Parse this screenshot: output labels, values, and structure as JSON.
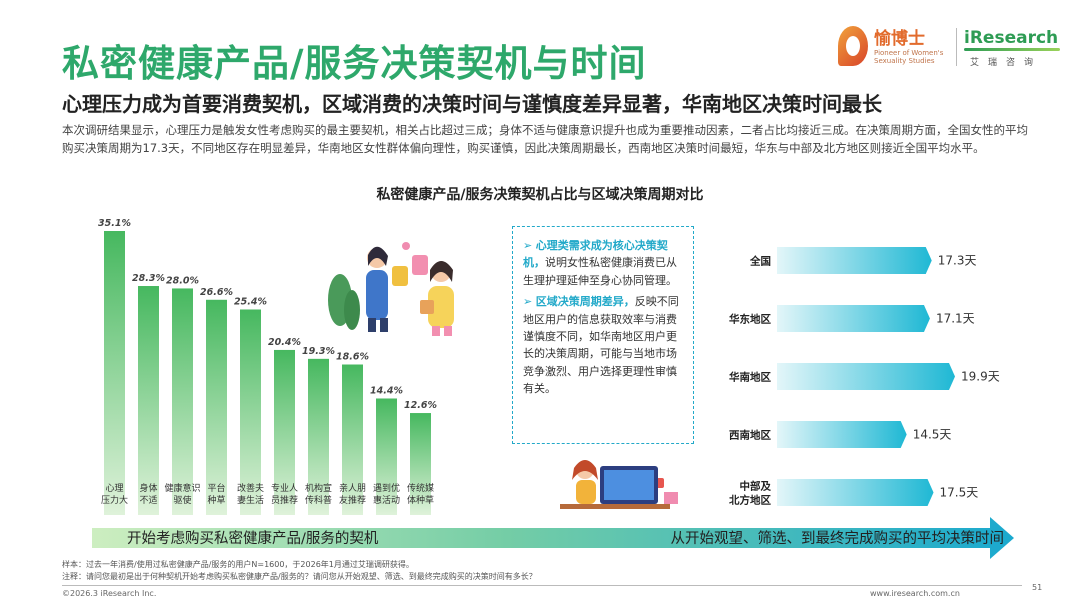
{
  "header": {
    "title": "私密健康产品/服务决策契机与时间",
    "subtitle": "心理压力成为首要消费契机，区域消费的决策时间与谨慎度差异显著，华南地区决策时间最长",
    "intro": "本次调研结果显示，心理压力是触发女性考虑购买的最主要契机，相关占比超过三成；身体不适与健康意识提升也成为重要推动因素，二者占比均接近三成。在决策周期方面，全国女性的平均购买决策周期为17.3天，不同地区存在明显差异，华南地区女性群体偏向理性，购买谨慎，因此决策周期最长，西南地区决策时间最短，华东与中部及北方地区则接近全国平均水平。"
  },
  "logos": {
    "yuboshi_name": "愉博士",
    "yuboshi_tagline": "Pioneer of Women's Sexuality Studies",
    "iresearch_name": "iResearch",
    "iresearch_cn": "艾瑞咨询"
  },
  "chart_title": "私密健康产品/服务决策契机占比与区域决策周期对比",
  "chart_data": [
    {
      "type": "bar",
      "unit": "%",
      "categories": [
        "心理压力大",
        "身体不适",
        "健康意识驱使",
        "平台种草",
        "改善夫妻生活",
        "专业人员推荐",
        "机构宣传科普",
        "亲人朋友推荐",
        "遇到优惠活动",
        "传统媒体种草"
      ],
      "category_lines": [
        [
          "心理",
          "压力大"
        ],
        [
          "身体",
          "不适"
        ],
        [
          "健康意识",
          "驱使"
        ],
        [
          "平台",
          "种草"
        ],
        [
          "改善夫",
          "妻生活"
        ],
        [
          "专业人",
          "员推荐"
        ],
        [
          "机构宣",
          "传科普"
        ],
        [
          "亲人朋",
          "友推荐"
        ],
        [
          "遇到优",
          "惠活动"
        ],
        [
          "传统媒",
          "体种草"
        ]
      ],
      "values": [
        35.1,
        28.3,
        28.0,
        26.6,
        25.4,
        20.4,
        19.3,
        18.6,
        14.4,
        12.6
      ],
      "value_labels": [
        "35.1%",
        "28.3%",
        "28.0%",
        "26.6%",
        "25.4%",
        "20.4%",
        "19.3%",
        "18.6%",
        "14.4%",
        "12.6%"
      ],
      "axis_label": "开始考虑购买私密健康产品/服务的契机",
      "ylim": [
        0,
        35.1
      ]
    },
    {
      "type": "bar",
      "orientation": "horizontal",
      "unit": "天",
      "categories": [
        "全国",
        "华东地区",
        "华南地区",
        "西南地区",
        "中部及北方地区"
      ],
      "category_lines": [
        [
          "全国"
        ],
        [
          "华东地区"
        ],
        [
          "华南地区"
        ],
        [
          "西南地区"
        ],
        [
          "中部及",
          "北方地区"
        ]
      ],
      "values": [
        17.3,
        17.1,
        19.9,
        14.5,
        17.5
      ],
      "value_labels": [
        "17.3天",
        "17.1天",
        "19.9天",
        "14.5天",
        "17.5天"
      ],
      "axis_label": "从开始观望、筛选、到最终完成购买的平均决策时间"
    }
  ],
  "callout": {
    "b1_arrow": "➢",
    "b1_head": "心理类需求成为核心决策契机，",
    "b1_body": "说明女性私密健康消费已从生理护理延伸至身心协同管理。",
    "b2_arrow": "➢",
    "b2_head": "区域决策周期差异，",
    "b2_body": "反映不同地区用户的信息获取效率与消费谨慎度不同，如华南地区用户更长的决策周期，可能与当地市场竞争激烈、用户选择更理性审慎有关。"
  },
  "footer": {
    "note1": "样本：过去一年消费/使用过私密健康产品/服务的用户N=1600，于2026年1月通过艾瑞调研获得。",
    "note2": "注释：请问您最初是出于何种契机开始考虑购买私密健康产品/服务的？请问您从开始观望、筛选、到最终完成购买的决策时间有多长？",
    "copyright": "©2026.3 iResearch Inc.",
    "site": "www.iresearch.com.cn",
    "page": "51"
  },
  "colors": {
    "title_green": "#2ea86b",
    "bar_top": "#46b85f",
    "bar_bottom": "#dff2da",
    "hbar_left": "#e3f6f9",
    "hbar_right": "#1fb8d4",
    "accent_blue": "#22a9c9",
    "arrow_left": "#b9e3a8",
    "arrow_right": "#1aa9cf"
  }
}
